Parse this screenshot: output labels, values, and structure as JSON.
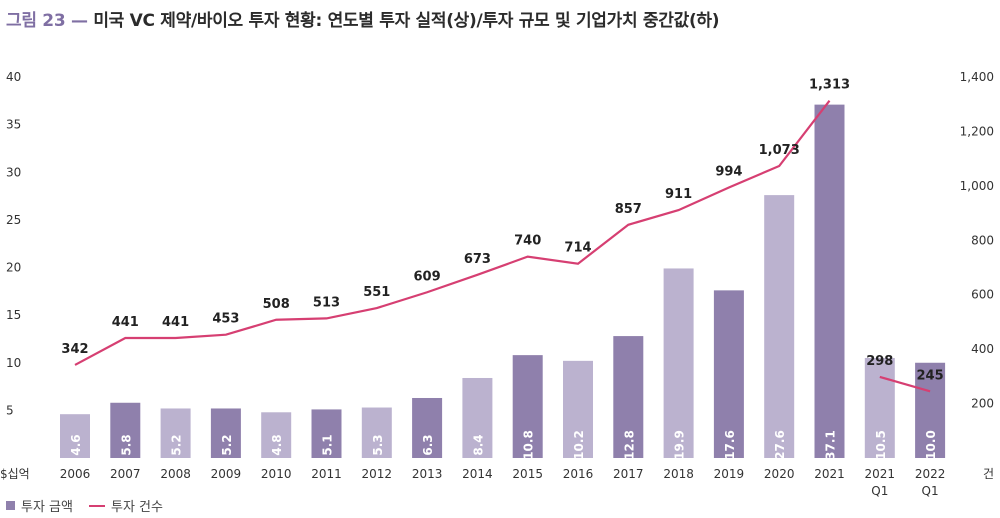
{
  "title": {
    "figure_label": "그림 23 —",
    "text": "미국 VC 제약/바이오 투자 현황: 연도별 투자 실적(상)/투자 규모 및 기업가치 중간값(하)"
  },
  "legend": {
    "bar_label": "투자 금액",
    "line_label": "투자 건수"
  },
  "colors": {
    "accent": "#7f6fa3",
    "bar_dark": "#8f80ac",
    "bar_light": "#bbb2cf",
    "line": "#d63f72",
    "axis_text": "#333333"
  },
  "chart_data": {
    "type": "bar",
    "categories": [
      "2006",
      "2007",
      "2008",
      "2009",
      "2010",
      "2011",
      "2012",
      "2013",
      "2014",
      "2015",
      "2016",
      "2017",
      "2018",
      "2019",
      "2020",
      "2021",
      "2021\nQ1",
      "2022\nQ1"
    ],
    "y_left": {
      "label": "$십억",
      "ticks": [
        5,
        10,
        15,
        20,
        25,
        30,
        35,
        40
      ],
      "ylim": [
        0,
        40
      ]
    },
    "y_right": {
      "label": "건",
      "ticks": [
        "200",
        "400",
        "600",
        "800",
        "1,000",
        "1,200",
        "1,400"
      ],
      "ylim": [
        0,
        1400
      ]
    },
    "series": [
      {
        "name": "투자 금액",
        "type": "bar",
        "axis": "left",
        "values": [
          4.6,
          5.8,
          5.2,
          5.2,
          4.8,
          5.1,
          5.3,
          6.3,
          8.4,
          10.8,
          10.2,
          12.8,
          19.9,
          17.6,
          27.6,
          37.1,
          10.5,
          10.0
        ],
        "labels": [
          "4.6",
          "5.8",
          "5.2",
          "5.2",
          "4.8",
          "5.1",
          "5.3",
          "6.3",
          "8.4",
          "10.8",
          "10.2",
          "12.8",
          "19.9",
          "17.6",
          "27.6",
          "37.1",
          "10.5",
          "10.0"
        ],
        "shade": [
          "light",
          "dark",
          "light",
          "dark",
          "light",
          "dark",
          "light",
          "dark",
          "light",
          "dark",
          "light",
          "dark",
          "light",
          "dark",
          "light",
          "dark",
          "light",
          "dark"
        ]
      },
      {
        "name": "투자 건수",
        "type": "line",
        "axis": "right",
        "values": [
          342,
          441,
          441,
          453,
          508,
          513,
          551,
          609,
          673,
          740,
          714,
          857,
          911,
          994,
          1073,
          1313,
          298,
          245
        ],
        "labels": [
          "342",
          "441",
          "441",
          "453",
          "508",
          "513",
          "551",
          "609",
          "673",
          "740",
          "714",
          "857",
          "911",
          "994",
          "1,073",
          "1,313",
          "298",
          "245"
        ],
        "segments": [
          [
            0,
            15
          ],
          [
            16,
            17
          ]
        ]
      }
    ]
  }
}
